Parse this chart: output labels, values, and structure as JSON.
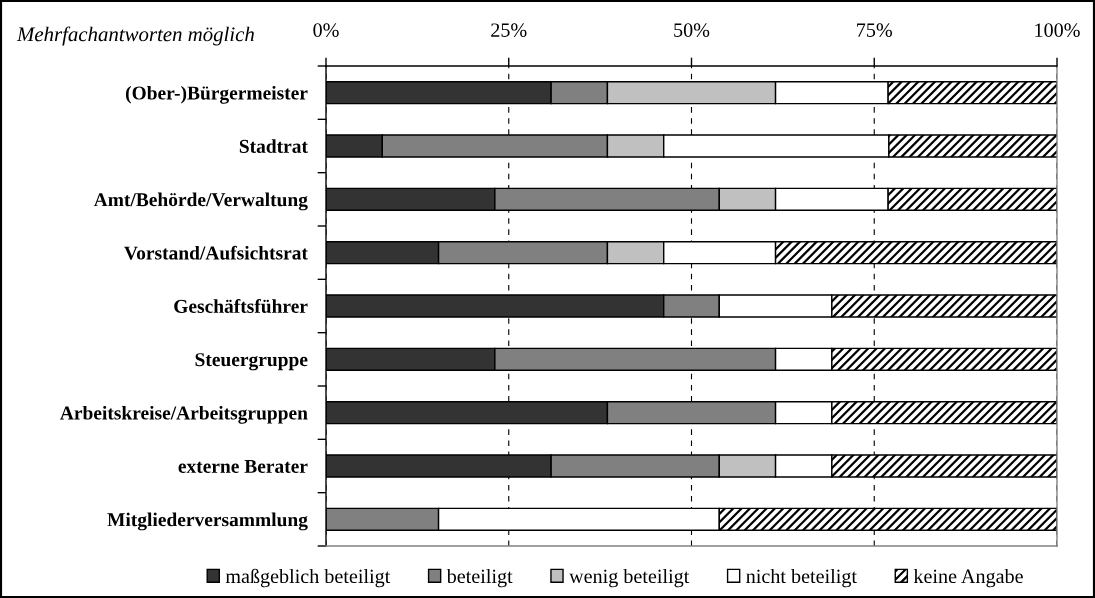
{
  "chart_data": {
    "type": "bar",
    "orientation": "horizontal",
    "stacked": true,
    "categories": [
      "(Ober-)Bürgermeister",
      "Stadtrat",
      "Amt/Behörde/Verwaltung",
      "Vorstand/Aufsichtsrat",
      "Geschäftsführer",
      "Steuergruppe",
      "Arbeitskreise/Arbeitsgruppen",
      "externe Berater",
      "Mitgliederversammlung"
    ],
    "series": [
      {
        "name": "maßgeblich beteiligt",
        "color": "#333333",
        "values": [
          30.8,
          7.7,
          23.1,
          15.4,
          46.2,
          23.1,
          38.5,
          30.8,
          0
        ]
      },
      {
        "name": "beteiligt",
        "color": "#808080",
        "values": [
          7.7,
          30.8,
          30.7,
          23.1,
          7.6,
          38.4,
          23.0,
          23.0,
          15.4
        ]
      },
      {
        "name": "wenig beteiligt",
        "color": "#c0c0c0",
        "values": [
          23.0,
          7.7,
          7.7,
          7.7,
          0,
          0,
          0,
          7.7,
          0
        ]
      },
      {
        "name": "nicht beteiligt",
        "color": "#ffffff",
        "values": [
          15.4,
          30.8,
          15.4,
          15.3,
          15.4,
          7.7,
          7.7,
          7.7,
          38.4
        ]
      },
      {
        "name": "keine Angabe",
        "color": "#000000",
        "values": [
          23.1,
          23.1,
          23.1,
          38.5,
          30.8,
          30.8,
          30.8,
          30.8,
          46.2
        ]
      }
    ],
    "xlim": [
      0,
      100
    ],
    "xticks": [
      {
        "value": 0,
        "label": "0%"
      },
      {
        "value": 25,
        "label": "25%"
      },
      {
        "value": 50,
        "label": "50%"
      },
      {
        "value": 75,
        "label": "75%"
      },
      {
        "value": 100,
        "label": "100%"
      }
    ],
    "grid": "x",
    "legend": "bottom",
    "annotations": [
      "Mehrfachantworten möglich"
    ]
  }
}
